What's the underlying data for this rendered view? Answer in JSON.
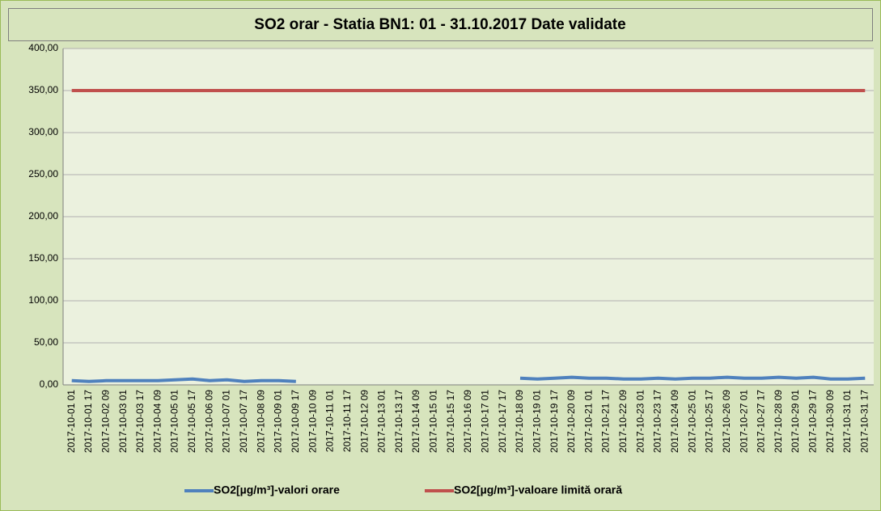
{
  "chart_data": {
    "type": "line",
    "title": "SO2 orar - Statia BN1: 01 - 31.10.2017 Date validate",
    "categories": [
      "2017-10-01 01",
      "2017-10-01 17",
      "2017-10-02 09",
      "2017-10-03 01",
      "2017-10-03 17",
      "2017-10-04 09",
      "2017-10-05 01",
      "2017-10-05 17",
      "2017-10-06 09",
      "2017-10-07 01",
      "2017-10-07 17",
      "2017-10-08 09",
      "2017-10-09 01",
      "2017-10-09 17",
      "2017-10-10 09",
      "2017-10-11 01",
      "2017-10-11 17",
      "2017-10-12 09",
      "2017-10-13 01",
      "2017-10-13 17",
      "2017-10-14 09",
      "2017-10-15 01",
      "2017-10-15 17",
      "2017-10-16 09",
      "2017-10-17 01",
      "2017-10-17 17",
      "2017-10-18 09",
      "2017-10-19 01",
      "2017-10-19 17",
      "2017-10-20 09",
      "2017-10-21 01",
      "2017-10-21 17",
      "2017-10-22 09",
      "2017-10-23 01",
      "2017-10-23 17",
      "2017-10-24 09",
      "2017-10-25 01",
      "2017-10-25 17",
      "2017-10-26 09",
      "2017-10-27 01",
      "2017-10-27 17",
      "2017-10-28 09",
      "2017-10-29 01",
      "2017-10-29 17",
      "2017-10-30 09",
      "2017-10-31 01",
      "2017-10-31 17"
    ],
    "series": [
      {
        "name": "SO2[µg/m³]-valori orare",
        "color": "#4f81bd",
        "values": [
          5,
          4,
          5,
          5,
          5,
          5,
          6,
          7,
          5,
          6,
          4,
          5,
          5,
          4,
          null,
          null,
          null,
          null,
          null,
          null,
          null,
          null,
          null,
          null,
          null,
          null,
          8,
          7,
          8,
          9,
          8,
          8,
          7,
          7,
          8,
          7,
          8,
          8,
          9,
          8,
          8,
          9,
          8,
          9,
          7,
          7,
          8
        ]
      },
      {
        "name": "SO2[µg/m³]-valoare limită orară",
        "color": "#c0504d",
        "values": [
          350,
          350,
          350,
          350,
          350,
          350,
          350,
          350,
          350,
          350,
          350,
          350,
          350,
          350,
          350,
          350,
          350,
          350,
          350,
          350,
          350,
          350,
          350,
          350,
          350,
          350,
          350,
          350,
          350,
          350,
          350,
          350,
          350,
          350,
          350,
          350,
          350,
          350,
          350,
          350,
          350,
          350,
          350,
          350,
          350,
          350,
          350
        ]
      }
    ],
    "ylim": [
      0,
      400
    ],
    "yticks": [
      {
        "value": 0,
        "label": "0,00"
      },
      {
        "value": 50,
        "label": "50,00"
      },
      {
        "value": 100,
        "label": "100,00"
      },
      {
        "value": 150,
        "label": "150,00"
      },
      {
        "value": 200,
        "label": "200,00"
      },
      {
        "value": 250,
        "label": "250,00"
      },
      {
        "value": 300,
        "label": "300,00"
      },
      {
        "value": 350,
        "label": "350,00"
      },
      {
        "value": 400,
        "label": "400,00"
      }
    ],
    "grid": true,
    "legend": "bottom"
  }
}
